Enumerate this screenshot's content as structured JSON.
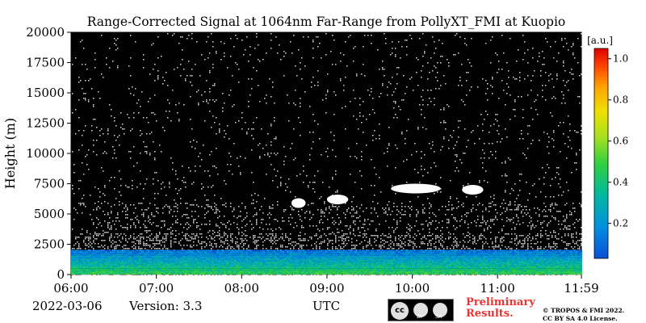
{
  "chart_data": {
    "type": "heatmap",
    "title": "Range-Corrected Signal at 1064nm Far-Range from PollyXT_FMI at Kuopio",
    "xlabel": "UTC",
    "ylabel": "Height (m)",
    "x_ticks": [
      "06:00",
      "07:00",
      "08:00",
      "09:00",
      "10:00",
      "11:00",
      "11:59"
    ],
    "x_range_hours": [
      6.0,
      11.983
    ],
    "y_ticks": [
      0,
      2500,
      5000,
      7500,
      10000,
      12500,
      15000,
      17500,
      20000
    ],
    "ylim": [
      0,
      20000
    ],
    "colorbar": {
      "label": "[a.u.]",
      "ticks": [
        0.2,
        0.4,
        0.6,
        0.8,
        1.0
      ],
      "range": [
        0.03,
        1.05
      ],
      "colormap": "jet",
      "above_max_color": "#ffffff",
      "background_color": "#000000"
    },
    "features": [
      {
        "name": "boundary layer",
        "top_m": 2000,
        "intensity": 0.35
      },
      {
        "name": "cloud",
        "start": "08:35",
        "end": "08:45",
        "height_m": 5900
      },
      {
        "name": "cloud",
        "start": "09:00",
        "end": "09:15",
        "height_m": 6200
      },
      {
        "name": "cloud",
        "start": "09:45",
        "end": "10:20",
        "height_m": 7100
      },
      {
        "name": "cloud",
        "start": "10:35",
        "end": "10:50",
        "height_m": 7000
      }
    ]
  },
  "footer": {
    "date": "2022-03-06",
    "version": "Version: 3.3",
    "preliminary_line1": "Preliminary",
    "preliminary_line2": "Results.",
    "copyright_line1": "© TROPOS & FMI 2022.",
    "copyright_line2": "CC BY SA 4.0 License.",
    "cc_label": "cc",
    "by_label": "BY",
    "sa_label": "SA"
  }
}
